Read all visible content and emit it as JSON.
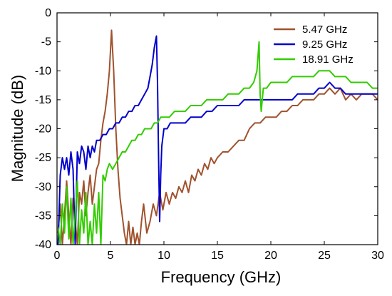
{
  "chart_data": {
    "type": "line",
    "title": "",
    "xlabel": "Frequency (GHz)",
    "ylabel": "Magnitude (dB)",
    "xlim": [
      0,
      30
    ],
    "ylim": [
      -40,
      0
    ],
    "xticks": [
      0,
      5,
      10,
      15,
      20,
      25,
      30
    ],
    "yticks": [
      0,
      -5,
      -10,
      -15,
      -20,
      -25,
      -30,
      -35,
      -40
    ],
    "grid": false,
    "legend_position": "top-right",
    "series": [
      {
        "name": "5.47 GHz",
        "color": "#A0522D",
        "x": [
          0.1,
          0.3,
          0.5,
          0.7,
          0.9,
          1.1,
          1.3,
          1.5,
          1.7,
          1.9,
          2.1,
          2.3,
          2.5,
          2.7,
          2.9,
          3.1,
          3.3,
          3.5,
          3.7,
          3.9,
          4.1,
          4.3,
          4.5,
          4.7,
          4.9,
          5.1,
          5.3,
          5.5,
          5.7,
          5.9,
          6.1,
          6.3,
          6.5,
          6.7,
          6.9,
          7.1,
          7.3,
          7.5,
          7.7,
          7.9,
          8.1,
          8.4,
          8.7,
          9.0,
          9.3,
          9.6,
          9.9,
          10.2,
          10.5,
          10.8,
          11.1,
          11.4,
          11.7,
          12.0,
          12.3,
          12.6,
          12.9,
          13.2,
          13.5,
          13.8,
          14.1,
          14.4,
          14.7,
          15.0,
          15.5,
          16.0,
          16.5,
          17.0,
          17.5,
          18.0,
          18.5,
          19.0,
          19.5,
          20.0,
          20.5,
          21.0,
          21.5,
          22.0,
          22.5,
          23.0,
          23.5,
          24.0,
          24.5,
          25.0,
          25.5,
          26.0,
          26.5,
          27.0,
          27.5,
          28.0,
          28.5,
          29.0,
          29.5,
          30.0
        ],
        "values": [
          -38,
          -33,
          -40,
          -35,
          -29,
          -35,
          -40,
          -32,
          -36,
          -40,
          -31,
          -33,
          -29,
          -35,
          -31,
          -28,
          -33,
          -30,
          -27,
          -26,
          -22,
          -19,
          -17,
          -14,
          -10,
          -3,
          -10,
          -20,
          -27,
          -32,
          -35,
          -38,
          -40,
          -36,
          -40,
          -37,
          -40,
          -38,
          -40,
          -36,
          -33,
          -38,
          -36,
          -33,
          -35,
          -31,
          -34,
          -31,
          -33,
          -31,
          -32,
          -30,
          -31,
          -29,
          -31,
          -28,
          -29,
          -27,
          -28,
          -26,
          -27,
          -25,
          -26,
          -25,
          -24,
          -24,
          -23,
          -22,
          -22,
          -20,
          -19,
          -19,
          -18,
          -18,
          -18,
          -17,
          -17,
          -16,
          -16,
          -15,
          -15,
          -15,
          -14,
          -14,
          -13,
          -14,
          -13,
          -15,
          -14,
          -15,
          -14,
          -14,
          -14,
          -15
        ]
      },
      {
        "name": "9.25 GHz",
        "color": "#0000CC",
        "x": [
          0.1,
          0.3,
          0.5,
          0.7,
          0.9,
          1.1,
          1.3,
          1.5,
          1.7,
          1.9,
          2.1,
          2.3,
          2.5,
          2.7,
          2.9,
          3.1,
          3.3,
          3.5,
          3.7,
          4.0,
          4.3,
          4.6,
          4.9,
          5.2,
          5.5,
          5.8,
          6.1,
          6.4,
          6.7,
          7.0,
          7.3,
          7.6,
          7.9,
          8.2,
          8.5,
          8.7,
          8.9,
          9.1,
          9.3,
          9.4,
          9.5,
          9.6,
          9.7,
          9.8,
          10.0,
          10.3,
          10.6,
          11.0,
          11.5,
          12.0,
          12.5,
          13.0,
          13.5,
          14.0,
          14.5,
          15.0,
          15.5,
          16.0,
          16.5,
          17.0,
          17.5,
          18.0,
          18.5,
          19.0,
          19.5,
          20.0,
          20.5,
          21.0,
          21.5,
          22.0,
          22.5,
          23.0,
          23.5,
          24.0,
          24.5,
          25.0,
          25.5,
          26.0,
          26.5,
          27.0,
          27.5,
          28.0,
          28.5,
          29.0,
          29.5,
          30.0
        ],
        "values": [
          -40,
          -28,
          -25,
          -27,
          -25,
          -28,
          -24,
          -27,
          -40,
          -24,
          -26,
          -23,
          -24,
          -27,
          -23,
          -25,
          -23,
          -24,
          -22,
          -22,
          -21,
          -21,
          -20,
          -20,
          -19,
          -19,
          -18,
          -18,
          -17,
          -17,
          -16,
          -16,
          -15,
          -14,
          -13,
          -11,
          -9,
          -6,
          -4,
          -12,
          -25,
          -36,
          -28,
          -23,
          -20,
          -20,
          -19,
          -19,
          -19,
          -19,
          -18,
          -18,
          -18,
          -17,
          -17,
          -16,
          -16,
          -16,
          -16,
          -16,
          -15,
          -15,
          -15,
          -15,
          -15,
          -15,
          -15,
          -15,
          -15,
          -15,
          -14,
          -14,
          -14,
          -14,
          -13,
          -13,
          -12,
          -13,
          -13,
          -14,
          -14,
          -14,
          -14,
          -14,
          -14,
          -14
        ]
      },
      {
        "name": "18.91 GHz",
        "color": "#33CC00",
        "x": [
          0.1,
          0.3,
          0.5,
          0.7,
          0.9,
          1.1,
          1.3,
          1.5,
          1.7,
          1.9,
          2.1,
          2.3,
          2.5,
          2.7,
          2.9,
          3.1,
          3.3,
          3.5,
          3.7,
          3.9,
          4.1,
          4.3,
          4.5,
          4.7,
          4.9,
          5.2,
          5.5,
          5.8,
          6.1,
          6.4,
          6.7,
          7.0,
          7.3,
          7.6,
          7.9,
          8.2,
          8.5,
          8.8,
          9.1,
          9.4,
          9.7,
          10.0,
          10.5,
          11.0,
          11.5,
          12.0,
          12.5,
          13.0,
          13.5,
          14.0,
          14.5,
          15.0,
          15.5,
          16.0,
          16.5,
          17.0,
          17.5,
          18.0,
          18.4,
          18.7,
          18.9,
          19.0,
          19.1,
          19.3,
          19.6,
          20.0,
          20.5,
          21.0,
          21.5,
          22.0,
          22.5,
          23.0,
          23.5,
          24.0,
          24.5,
          25.0,
          25.5,
          26.0,
          26.5,
          27.0,
          27.5,
          28.0,
          28.5,
          29.0,
          29.5,
          30.0
        ],
        "values": [
          -37,
          -40,
          -33,
          -38,
          -30,
          -39,
          -32,
          -40,
          -35,
          -29,
          -40,
          -34,
          -38,
          -31,
          -40,
          -36,
          -40,
          -33,
          -38,
          -31,
          -40,
          -28,
          -29,
          -27,
          -26,
          -27,
          -26,
          -25,
          -24,
          -24,
          -23,
          -22,
          -22,
          -21,
          -21,
          -20,
          -20,
          -20,
          -19,
          -19,
          -18,
          -18,
          -18,
          -17,
          -17,
          -17,
          -16,
          -16,
          -16,
          -15,
          -15,
          -15,
          -15,
          -14,
          -14,
          -14,
          -13,
          -13,
          -12,
          -10,
          -5,
          -14,
          -17,
          -13,
          -13,
          -12,
          -12,
          -12,
          -12,
          -11,
          -11,
          -11,
          -11,
          -11,
          -10,
          -10,
          -10,
          -11,
          -11,
          -11,
          -12,
          -12,
          -12,
          -12,
          -13,
          -13
        ]
      }
    ]
  }
}
